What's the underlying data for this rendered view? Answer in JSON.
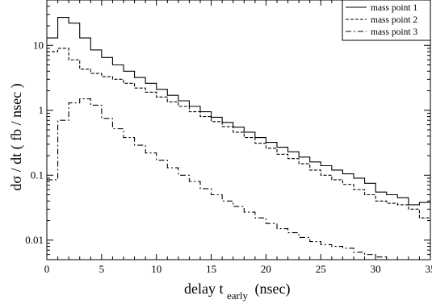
{
  "chart_data": {
    "type": "line",
    "step": true,
    "xlabel": "delay t",
    "xlabel_sub": "early",
    "xlabel_unit": "(nsec)",
    "ylabel": "dσ / dt ( fb / nsec )",
    "xlim": [
      0,
      35
    ],
    "ylim": [
      0.005,
      50
    ],
    "y_scale": "log",
    "legend_position": "top-right",
    "x_ticks": [
      0,
      5,
      10,
      15,
      20,
      25,
      30,
      35
    ],
    "y_ticks": [
      0.01,
      0.1,
      1,
      10
    ],
    "y_tick_labels": [
      "0.01",
      "0.1",
      "1",
      "10"
    ],
    "bin_edges": [
      0,
      1,
      2,
      3,
      4,
      5,
      6,
      7,
      8,
      9,
      10,
      11,
      12,
      13,
      14,
      15,
      16,
      17,
      18,
      19,
      20,
      21,
      22,
      23,
      24,
      25,
      26,
      27,
      28,
      29,
      30,
      31,
      32,
      33,
      34,
      35
    ],
    "series": [
      {
        "name": "mass point 1",
        "dash": "solid",
        "values": [
          13,
          27,
          22,
          13,
          8.5,
          6.5,
          5.0,
          4.0,
          3.2,
          2.6,
          2.1,
          1.7,
          1.4,
          1.15,
          0.95,
          0.78,
          0.65,
          0.55,
          0.46,
          0.38,
          0.32,
          0.27,
          0.23,
          0.19,
          0.16,
          0.14,
          0.12,
          0.105,
          0.09,
          0.075,
          0.055,
          0.05,
          0.045,
          0.035,
          0.038
        ]
      },
      {
        "name": "mass point 2",
        "dash": "dashed",
        "values": [
          8,
          9,
          6,
          4.3,
          3.7,
          3.3,
          3.0,
          2.6,
          2.2,
          1.9,
          1.6,
          1.35,
          1.15,
          0.95,
          0.8,
          0.67,
          0.56,
          0.46,
          0.38,
          0.31,
          0.26,
          0.21,
          0.18,
          0.15,
          0.12,
          0.1,
          0.085,
          0.072,
          0.06,
          0.05,
          0.04,
          0.037,
          0.035,
          0.03,
          0.022
        ]
      },
      {
        "name": "mass point 3",
        "dash": "dashdot",
        "values": [
          0.085,
          0.7,
          1.3,
          1.5,
          1.2,
          0.75,
          0.52,
          0.38,
          0.29,
          0.22,
          0.17,
          0.13,
          0.1,
          0.08,
          0.062,
          0.05,
          0.04,
          0.033,
          0.027,
          0.022,
          0.018,
          0.015,
          0.013,
          0.011,
          0.0095,
          0.0085,
          0.008,
          0.0075,
          0.0065,
          0.006,
          0.0055,
          0.005,
          0.005,
          0.005,
          0.005
        ]
      }
    ]
  }
}
